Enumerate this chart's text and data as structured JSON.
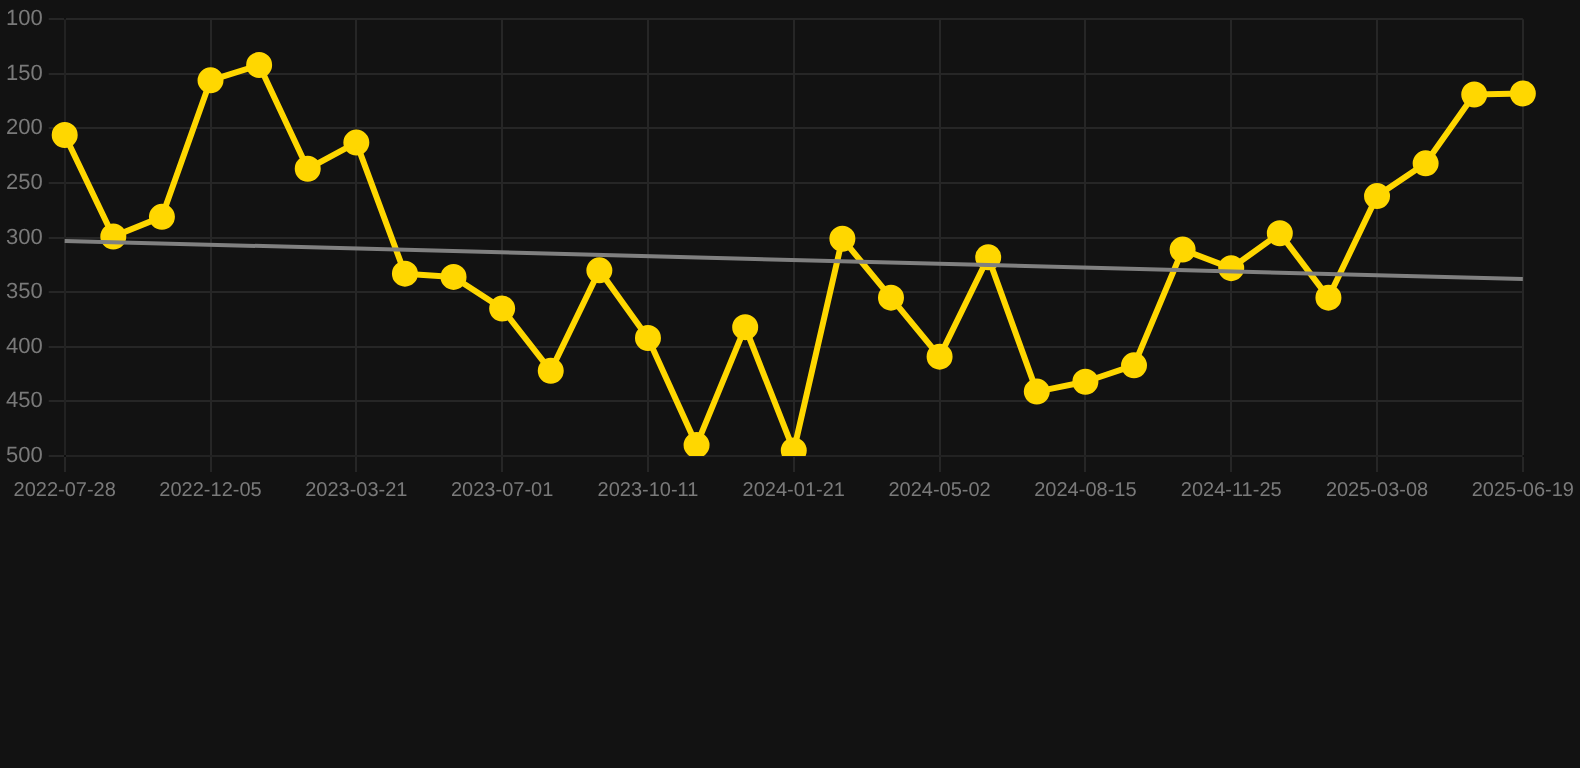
{
  "chart_data": {
    "type": "line",
    "categories": [
      "2022-07-28",
      null,
      null,
      "2022-12-05",
      null,
      null,
      "2023-03-21",
      null,
      null,
      "2023-07-01",
      null,
      null,
      "2023-10-11",
      null,
      null,
      "2024-01-21",
      null,
      null,
      "2024-05-02",
      null,
      null,
      "2024-08-15",
      null,
      null,
      "2024-11-25",
      null,
      null,
      "2025-03-08",
      null,
      null,
      "2025-06-19"
    ],
    "ylim": [
      500,
      100
    ],
    "yticks": [
      100,
      150,
      200,
      250,
      300,
      350,
      400,
      450,
      500
    ],
    "grid": true,
    "legend": false,
    "series": [
      {
        "color": "#ffd700",
        "marker": "circle",
        "values": [
          206,
          299,
          281,
          156,
          142,
          237,
          213,
          333,
          336,
          365,
          422,
          330,
          392,
          490,
          382,
          495,
          301,
          355,
          409,
          318,
          441,
          432,
          417,
          311,
          328,
          296,
          355,
          262,
          232,
          169,
          168
        ]
      },
      {
        "type": "line",
        "color": "#808080",
        "marker": "none",
        "values": [
          303,
          null,
          null,
          null,
          null,
          null,
          null,
          null,
          null,
          null,
          null,
          null,
          null,
          null,
          null,
          null,
          null,
          null,
          null,
          null,
          null,
          null,
          null,
          null,
          null,
          null,
          null,
          null,
          null,
          null,
          338
        ]
      }
    ]
  }
}
